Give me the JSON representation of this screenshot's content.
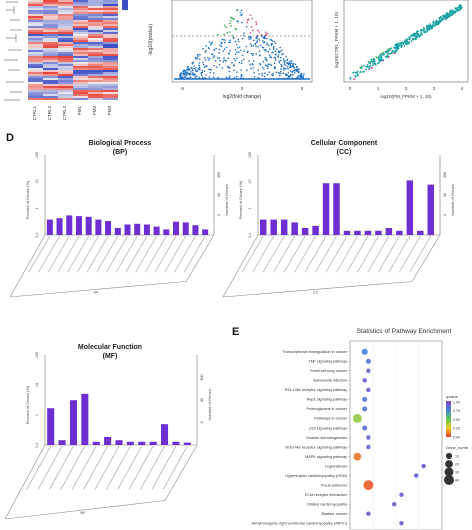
{
  "panel_letters": {
    "d": "D",
    "e": "E"
  },
  "heatmap": {
    "labels": [
      "CTRL1",
      "CTRL2",
      "CTRL3",
      "PM1",
      "PM2",
      "PM3"
    ],
    "colors": {
      "high": "#e8453c",
      "low": "#3d4fc4",
      "mid": "#f3f3f3"
    }
  },
  "volcano": {
    "ylabel": "-log10(pvalue)",
    "xlabel": "log2(fold change)",
    "x_ticks": [
      "-5",
      "0",
      "5"
    ],
    "colors": {
      "up": "#d6336c",
      "down": "#27a844",
      "ns": "#1f6fc2"
    }
  },
  "scatter_plot": {
    "ylabel": "log10(CTRL_FPKM + 1, 10)",
    "xlabel": "log10(PM_FPKM + 1, 10)",
    "x_ticks": [
      "0",
      "1",
      "2",
      "3",
      "4"
    ],
    "colors": {
      "main": "#1aa3a3",
      "up": "#d6336c",
      "down": "#27a844"
    }
  },
  "chart_data": [
    {
      "type": "bar",
      "title": "Biological Process",
      "subtitle": "(BP)",
      "xlabel": "BP",
      "ylabel": "Percent of Genes (%)",
      "y2label": "Number of Genes",
      "y_ticks": [
        "0.1",
        "1",
        "10",
        "100"
      ],
      "y2_ticks": [
        "3",
        "30",
        "300"
      ],
      "color": "#6d2fd1",
      "values": [
        22,
        24,
        28,
        27,
        26,
        22,
        20,
        10,
        15,
        16,
        15,
        12,
        8,
        19,
        18,
        14,
        8
      ]
    },
    {
      "type": "bar",
      "title": "Cellular Component",
      "subtitle": "(CC)",
      "xlabel": "CC",
      "ylabel": "Percent of Genes (%)",
      "y2label": "Number of Genes",
      "y_ticks": [
        "0.1",
        "1",
        "10",
        "100"
      ],
      "y2_ticks": [
        "3",
        "30",
        "300"
      ],
      "color": "#6d2fd1",
      "values": [
        22,
        22,
        22,
        18,
        10,
        13,
        74,
        74,
        6,
        6,
        6,
        6,
        10,
        6,
        78,
        6,
        72
      ]
    },
    {
      "type": "bar",
      "title": "Molecular Function",
      "subtitle": "(MF)",
      "xlabel": "MF",
      "ylabel": "Percent of Genes (%)",
      "y2label": "Number of Genes",
      "y_ticks": [
        "0.1",
        "1",
        "10",
        "100"
      ],
      "y2_ticks": [
        "3",
        "30",
        "300"
      ],
      "color": "#6d2fd1",
      "values": [
        46,
        6,
        56,
        64,
        4,
        10,
        6,
        4,
        4,
        4,
        26,
        4,
        3
      ]
    },
    {
      "type": "scatter",
      "title": "Statistics of Pathway Enrichment",
      "categories": [
        "Transcriptional misregulation in cancer",
        "TNF signaling pathway",
        "Small cell lung cancer",
        "Salmonella infection",
        "RIG-I-like receptor signaling pathway",
        "Rap1 signaling pathway",
        "Proteoglycans in cancer",
        "Pathways in cancer",
        "p53 signaling pathway",
        "Ovarian steroidogenesis",
        "NOD-like receptor signaling pathway",
        "MAPK signaling pathway",
        "Legionellosis",
        "Hypertrophic cardiomyopathy (HCM)",
        "Focal adhesion",
        "ECM-receptor interaction",
        "Dilated cardiomyopathy",
        "Bladder cancer",
        "Arrhythmogenic right ventricular cardiomyopathy (ARVC)"
      ],
      "rich_factor": [
        0.04,
        0.05,
        0.05,
        0.04,
        0.05,
        0.04,
        0.04,
        0.02,
        0.04,
        0.05,
        0.05,
        0.02,
        0.2,
        0.18,
        0.05,
        0.14,
        0.12,
        0.05,
        0.14
      ],
      "qvalue": [
        0.75,
        0.8,
        0.85,
        0.88,
        0.88,
        0.8,
        0.8,
        0.4,
        0.82,
        0.85,
        0.85,
        0.1,
        0.9,
        0.85,
        0.05,
        0.9,
        0.9,
        0.88,
        0.9
      ],
      "gene_number": [
        10,
        5,
        3,
        3,
        3,
        5,
        5,
        30,
        5,
        3,
        3,
        20,
        3,
        3,
        40,
        3,
        3,
        3,
        3
      ],
      "legend": {
        "qvalue_title": "qvalue",
        "qvalue_ticks": [
          "1.00",
          "0.75",
          "0.50",
          "0.25",
          "0.00"
        ],
        "size_title": "Gene_numb",
        "size_ticks": [
          "10",
          "20",
          "30",
          "40"
        ]
      }
    }
  ]
}
